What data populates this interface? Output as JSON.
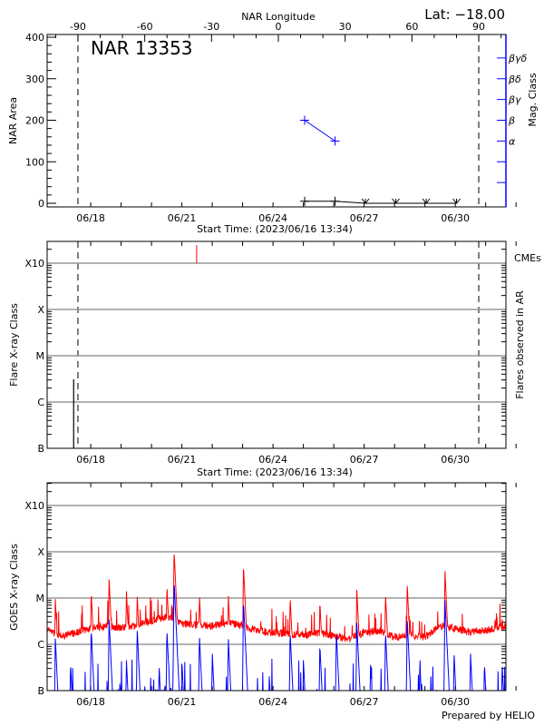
{
  "header": {
    "lat_label": "Lat: −18.00"
  },
  "footer": {
    "credit": "Prepared by HELIO"
  },
  "colors": {
    "flux_long": "#ff0000",
    "flux_short": "#0000ff",
    "mag_class": "#0000ff",
    "cme": "#ff0000",
    "grid": "#999999",
    "axes": "#000000"
  },
  "time_axis": {
    "start": "2023-06-16T13:34",
    "end": "2023-07-01T16:00",
    "year": 2023,
    "tick_labels": [
      "06/18",
      "06/21",
      "06/24",
      "06/27",
      "06/30"
    ],
    "label": "Start Time: (2023/06/16 13:34)"
  },
  "chart_data": [
    {
      "type": "line",
      "title": "NAR 13353",
      "top_xlabel": "NAR Longitude",
      "xlabel": "Start Time: (2023/06/16 13:34)",
      "ylabel": "NAR Area",
      "right_ylabel": "Mag. Class",
      "ylim": [
        0,
        400
      ],
      "yticks": [
        "0",
        "100",
        "200",
        "300",
        "400"
      ],
      "lon_ticks": [
        "-90",
        "-60",
        "-30",
        "0",
        "30",
        "60",
        "90"
      ],
      "limb_longitudes": [
        -90,
        90
      ],
      "area": {
        "times": [
          "2023-06-25T01:00",
          "2023-06-26T01:00",
          "2023-06-27T01:00",
          "2023-06-28T01:00",
          "2023-06-29T01:00",
          "2023-06-30T01:00"
        ],
        "values": [
          5,
          5,
          0,
          0,
          0,
          0
        ],
        "markers": [
          "plus",
          "plus",
          "down",
          "down",
          "down",
          "down"
        ]
      },
      "mag_class": {
        "times": [
          "2023-06-25T01:00",
          "2023-06-26T01:00"
        ],
        "values": [
          "β",
          "α"
        ]
      },
      "mag_class_levels": [
        {
          "label": "α",
          "area_equiv": 150
        },
        {
          "label": "β",
          "area_equiv": 200
        },
        {
          "label": "βγ",
          "area_equiv": 250
        },
        {
          "label": "βδ",
          "area_equiv": 300
        },
        {
          "label": "βγδ",
          "area_equiv": 350
        }
      ],
      "mag_unlabeled_ticks": [
        50,
        100
      ]
    },
    {
      "type": "bar",
      "xlabel": "Start Time: (2023/06/16 13:34)",
      "ylabel": "Flare X-ray Class",
      "right_ylabel": "Flares observed in AR",
      "cme_label": "CMEs",
      "yticks": [
        "B",
        "C",
        "M",
        "X",
        "X10"
      ],
      "flares": [
        {
          "time": "2023-06-17T10:30",
          "class": "C3.1"
        }
      ],
      "cmes": [
        {
          "time": "2023-06-21T11:40"
        }
      ]
    },
    {
      "type": "line",
      "ylabel": "GOES X-ray Class",
      "yticks": [
        "B",
        "C",
        "M",
        "X",
        "X10"
      ],
      "series": [
        {
          "channel": "long",
          "color": "#ff0000",
          "background": {
            "times": [
              "2023-06-16T13:34",
              "2023-06-17T00:00",
              "2023-06-17T12:00",
              "2023-06-18T00:00",
              "2023-06-18T12:00",
              "2023-06-19T00:00",
              "2023-06-19T12:00",
              "2023-06-20T00:00",
              "2023-06-20T12:00",
              "2023-06-21T00:00",
              "2023-06-21T12:00",
              "2023-06-22T00:00",
              "2023-06-22T12:00",
              "2023-06-23T00:00",
              "2023-06-23T12:00",
              "2023-06-24T00:00",
              "2023-06-24T12:00",
              "2023-06-25T00:00",
              "2023-06-25T12:00",
              "2023-06-26T00:00",
              "2023-06-26T12:00",
              "2023-06-27T00:00",
              "2023-06-27T12:00",
              "2023-06-28T00:00",
              "2023-06-28T12:00",
              "2023-06-29T00:00",
              "2023-06-29T12:00",
              "2023-06-30T00:00",
              "2023-06-30T12:00",
              "2023-07-01T00:00",
              "2023-07-01T16:00"
            ],
            "classes": [
              "C2.0",
              "C1.5",
              "C1.8",
              "C2.2",
              "C2.5",
              "C2.3",
              "C2.6",
              "C3.2",
              "C4.0",
              "C2.8",
              "C2.6",
              "C2.5",
              "C3.0",
              "C2.5",
              "C2.0",
              "C1.8",
              "C1.7",
              "C1.6",
              "C1.8",
              "C1.5",
              "C1.3",
              "C1.8",
              "C2.0",
              "C1.4",
              "C1.6",
              "C1.4",
              "C2.5",
              "C2.2",
              "C1.8",
              "C2.0",
              "C2.5"
            ]
          },
          "peaks": [
            {
              "time": "2023-06-16T20:00",
              "class": "M1.0"
            },
            {
              "time": "2023-06-18T00:20",
              "class": "M1.4"
            },
            {
              "time": "2023-06-18T14:30",
              "class": "M2.6"
            },
            {
              "time": "2023-06-19T04:10",
              "class": "M1.5"
            },
            {
              "time": "2023-06-19T12:40",
              "class": "M1.2"
            },
            {
              "time": "2023-06-20T12:10",
              "class": "M1.9"
            },
            {
              "time": "2023-06-20T17:50",
              "class": "X1.1"
            },
            {
              "time": "2023-06-21T13:50",
              "class": "M1.2"
            },
            {
              "time": "2023-06-22T12:40",
              "class": "M1.2"
            },
            {
              "time": "2023-06-23T00:40",
              "class": "M5.0"
            },
            {
              "time": "2023-06-24T13:30",
              "class": "M1.1"
            },
            {
              "time": "2023-06-25T13:00",
              "class": "C8.7"
            },
            {
              "time": "2023-06-26T18:10",
              "class": "M1.6"
            },
            {
              "time": "2023-06-27T16:50",
              "class": "M1.3"
            },
            {
              "time": "2023-06-28T10:00",
              "class": "M2.0"
            },
            {
              "time": "2023-06-29T15:50",
              "class": "M3.9"
            },
            {
              "time": "2023-07-01T13:00",
              "class": "C4.2"
            }
          ]
        },
        {
          "channel": "short",
          "color": "#0000ff",
          "peaks": [
            {
              "time": "2023-06-16T20:00",
              "class": "C1.4"
            },
            {
              "time": "2023-06-17T08:00",
              "class": "B4.0"
            },
            {
              "time": "2023-06-18T00:20",
              "class": "C2.2"
            },
            {
              "time": "2023-06-18T14:30",
              "class": "C3.5"
            },
            {
              "time": "2023-06-19T04:10",
              "class": "B4.8"
            },
            {
              "time": "2023-06-19T12:40",
              "class": "C2.2"
            },
            {
              "time": "2023-06-20T06:00",
              "class": "B3.5"
            },
            {
              "time": "2023-06-20T12:10",
              "class": "C2.1"
            },
            {
              "time": "2023-06-20T17:50",
              "class": "M2.4"
            },
            {
              "time": "2023-06-21T00:00",
              "class": "B4.6"
            },
            {
              "time": "2023-06-21T13:50",
              "class": "C1.6"
            },
            {
              "time": "2023-06-22T00:00",
              "class": "B6.6"
            },
            {
              "time": "2023-06-22T12:40",
              "class": "C1.4"
            },
            {
              "time": "2023-06-23T00:40",
              "class": "C8.3"
            },
            {
              "time": "2023-06-23T21:00",
              "class": "B2.3"
            },
            {
              "time": "2023-06-24T13:30",
              "class": "C1.9"
            },
            {
              "time": "2023-06-25T00:00",
              "class": "B4.6"
            },
            {
              "time": "2023-06-25T13:00",
              "class": "C1.0"
            },
            {
              "time": "2023-06-26T02:00",
              "class": "C1.9"
            },
            {
              "time": "2023-06-26T18:10",
              "class": "C3.1"
            },
            {
              "time": "2023-06-27T05:00",
              "class": "B4.0"
            },
            {
              "time": "2023-06-27T16:50",
              "class": "C1.9"
            },
            {
              "time": "2023-06-28T10:00",
              "class": "C3.5"
            },
            {
              "time": "2023-06-28T20:00",
              "class": "B4.0"
            },
            {
              "time": "2023-06-29T15:50",
              "class": "C9.1"
            },
            {
              "time": "2023-06-29T23:00",
              "class": "B6.6"
            },
            {
              "time": "2023-06-30T12:00",
              "class": "B6.6"
            },
            {
              "time": "2023-06-30T23:00",
              "class": "B4.0"
            },
            {
              "time": "2023-07-01T13:00",
              "class": "B4.0"
            }
          ]
        }
      ]
    }
  ]
}
